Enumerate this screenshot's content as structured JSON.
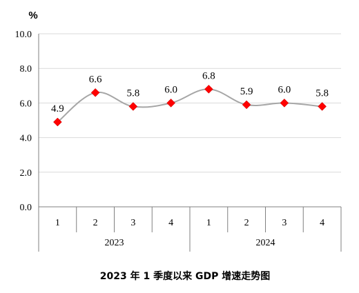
{
  "chart_data": {
    "type": "line",
    "title": "2023 年 1 季度以来 GDP 增速走势图",
    "unit": "%",
    "ylim": [
      0,
      10
    ],
    "yticks": [
      "0.0",
      "2.0",
      "4.0",
      "6.0",
      "8.0",
      "10.0"
    ],
    "grid": true,
    "smooth": true,
    "categories": [
      "1",
      "2",
      "3",
      "4",
      "1",
      "2",
      "3",
      "4"
    ],
    "groups": [
      {
        "label": "2023",
        "count": 4
      },
      {
        "label": "2024",
        "count": 4
      }
    ],
    "series": [
      {
        "values": [
          4.9,
          6.6,
          5.8,
          6.0,
          6.8,
          5.9,
          6.0,
          5.8
        ],
        "labels": [
          "4.9",
          "6.6",
          "5.8",
          "6.0",
          "6.8",
          "5.9",
          "6.0",
          "5.8"
        ],
        "line_color": "#a6a6a6",
        "marker_color": "#ff0000",
        "marker": "diamond"
      }
    ],
    "gridline_color": "#d9d9d9",
    "axis_color": "#7f7f7f"
  }
}
